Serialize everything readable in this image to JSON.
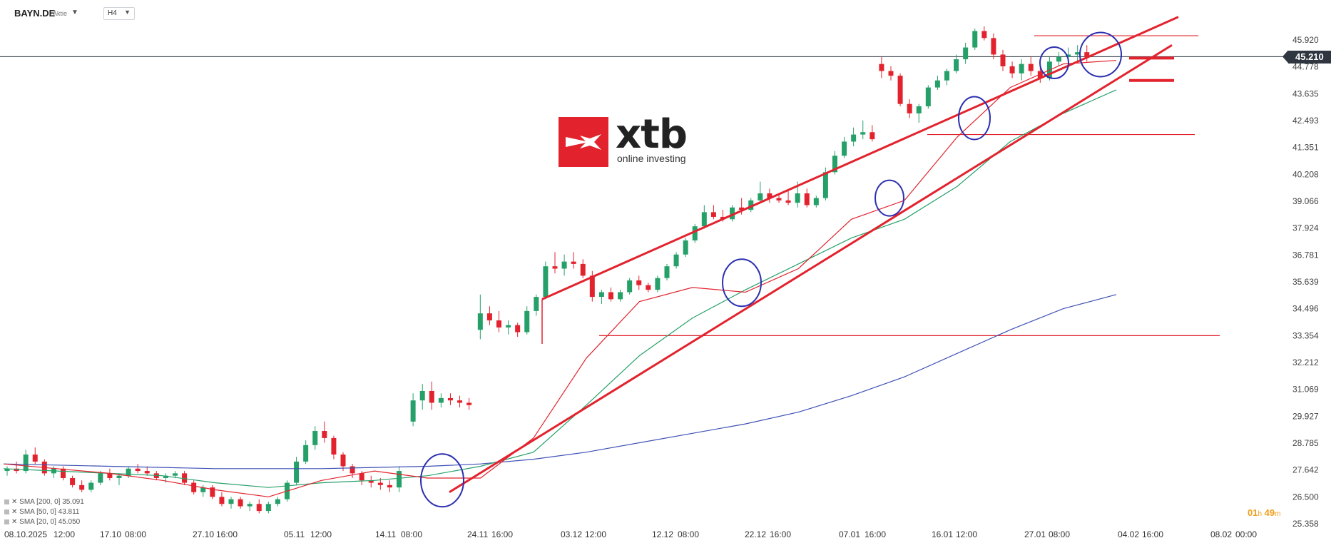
{
  "header": {
    "symbol": "BAYN.DE",
    "symbol_type": "Aktie",
    "timeframe": "H4"
  },
  "logo": {
    "name": "xtb",
    "tagline": "online investing"
  },
  "countdown": {
    "hours": "01",
    "h_unit": "h",
    "minutes": "49",
    "m_unit": "m"
  },
  "current_price": "45.210",
  "legend": [
    {
      "label": "SMA [200, 0] 35.091",
      "color": "#3f51b5"
    },
    {
      "label": "SMA [50, 0] 43.811",
      "color": "#26a069"
    },
    {
      "label": "SMA [20, 0] 45.050",
      "color": "#e2232e"
    }
  ],
  "colors": {
    "up_candle": "#26a069",
    "down_candle": "#e2232e",
    "channel": "#e2232e",
    "circle": "#2b2fb0",
    "price_line": "#2f3640"
  },
  "chart_data": {
    "type": "candlestick",
    "instrument": "BAYN.DE",
    "timeframe": "H4",
    "y_ticks": [
      45.92,
      44.778,
      43.635,
      42.493,
      41.351,
      40.208,
      39.066,
      37.924,
      36.781,
      35.639,
      34.496,
      33.354,
      32.212,
      31.069,
      29.927,
      28.785,
      27.642,
      26.5,
      25.358
    ],
    "y_tick_labels": [
      "45.920",
      "44.778",
      "43.635",
      "42.493",
      "41.351",
      "40.208",
      "39.066",
      "37.924",
      "36.781",
      "35.639",
      "34.496",
      "33.354",
      "32.212",
      "31.069",
      "29.927",
      "28.785",
      "27.642",
      "26.500",
      "25.358"
    ],
    "x_labels": [
      "08.10.2025",
      "12:00",
      "17.10",
      "08:00",
      "27.10",
      "16:00",
      "05.11",
      "12:00",
      "14.11",
      "08:00",
      "24.11",
      "16:00",
      "03.12",
      "12:00",
      "12.12",
      "08:00",
      "22.12",
      "16:00",
      "07.01",
      "16:00",
      "16.01",
      "12:00",
      "27.01",
      "08:00",
      "04.02",
      "16:00",
      "08.02",
      "00:00"
    ],
    "ylim": [
      25.358,
      46.5
    ],
    "current_price": 45.21,
    "grid": false,
    "horizontal_levels": [
      46.1,
      41.9,
      33.354
    ],
    "target_levels": [
      45.15,
      44.2
    ],
    "series_sma": [
      {
        "name": "SMA [200, 0]",
        "last": 35.091,
        "values": [
          27.9,
          27.85,
          27.8,
          27.75,
          27.7,
          27.7,
          27.7,
          27.75,
          27.8,
          27.9,
          28.1,
          28.4,
          28.8,
          29.2,
          29.6,
          30.1,
          30.8,
          31.6,
          32.6,
          33.6,
          34.5,
          35.1
        ]
      },
      {
        "name": "SMA [50, 0]",
        "last": 43.811,
        "values": [
          27.7,
          27.6,
          27.5,
          27.4,
          27.1,
          26.9,
          27.1,
          27.2,
          27.4,
          27.8,
          28.4,
          30.4,
          32.5,
          34.1,
          35.3,
          36.4,
          37.5,
          38.3,
          39.7,
          41.6,
          42.8,
          43.8
        ]
      },
      {
        "name": "SMA [20, 0]",
        "last": 45.05,
        "values": [
          27.9,
          27.7,
          27.5,
          27.2,
          26.8,
          26.5,
          27.2,
          27.6,
          27.3,
          27.3,
          29.0,
          32.4,
          34.8,
          35.4,
          35.2,
          36.2,
          38.3,
          39.1,
          41.8,
          43.9,
          44.9,
          45.05
        ]
      }
    ],
    "candles": [
      [
        27.6,
        27.8,
        27.4,
        27.7
      ],
      [
        27.7,
        28.0,
        27.5,
        27.6
      ],
      [
        27.6,
        28.5,
        27.5,
        28.3
      ],
      [
        28.3,
        28.6,
        27.9,
        28.0
      ],
      [
        28.0,
        28.1,
        27.4,
        27.5
      ],
      [
        27.5,
        27.8,
        27.3,
        27.7
      ],
      [
        27.7,
        27.8,
        27.2,
        27.3
      ],
      [
        27.3,
        27.4,
        26.9,
        27.0
      ],
      [
        27.0,
        27.2,
        26.7,
        26.8
      ],
      [
        26.8,
        27.2,
        26.7,
        27.1
      ],
      [
        27.1,
        27.6,
        27.0,
        27.5
      ],
      [
        27.5,
        27.7,
        27.2,
        27.3
      ],
      [
        27.3,
        27.5,
        27.0,
        27.4
      ],
      [
        27.4,
        27.8,
        27.3,
        27.7
      ],
      [
        27.7,
        27.9,
        27.5,
        27.6
      ],
      [
        27.6,
        27.8,
        27.4,
        27.5
      ],
      [
        27.5,
        27.6,
        27.2,
        27.3
      ],
      [
        27.3,
        27.5,
        27.1,
        27.4
      ],
      [
        27.4,
        27.6,
        27.3,
        27.5
      ],
      [
        27.5,
        27.6,
        27.0,
        27.1
      ],
      [
        27.1,
        27.2,
        26.6,
        26.7
      ],
      [
        26.7,
        27.0,
        26.5,
        26.9
      ],
      [
        26.9,
        27.0,
        26.4,
        26.5
      ],
      [
        26.5,
        26.7,
        26.1,
        26.2
      ],
      [
        26.2,
        26.5,
        26.0,
        26.4
      ],
      [
        26.4,
        26.5,
        26.0,
        26.1
      ],
      [
        26.1,
        26.3,
        25.9,
        26.2
      ],
      [
        26.2,
        26.4,
        25.8,
        25.9
      ],
      [
        25.9,
        26.3,
        25.8,
        26.2
      ],
      [
        26.2,
        26.5,
        26.1,
        26.4
      ],
      [
        26.4,
        27.2,
        26.3,
        27.1
      ],
      [
        27.1,
        28.2,
        27.0,
        28.0
      ],
      [
        28.0,
        28.9,
        27.9,
        28.7
      ],
      [
        28.7,
        29.5,
        28.5,
        29.3
      ],
      [
        29.3,
        29.7,
        28.8,
        29.0
      ],
      [
        29.0,
        29.1,
        28.1,
        28.3
      ],
      [
        28.3,
        28.4,
        27.6,
        27.8
      ],
      [
        27.8,
        27.9,
        27.3,
        27.5
      ],
      [
        27.5,
        27.6,
        27.0,
        27.2
      ],
      [
        27.2,
        27.4,
        26.9,
        27.1
      ],
      [
        27.1,
        27.3,
        26.8,
        27.0
      ],
      [
        27.0,
        27.2,
        26.7,
        26.9
      ],
      [
        26.9,
        27.8,
        26.7,
        27.6
      ],
      [
        29.7,
        30.9,
        29.5,
        30.6
      ],
      [
        30.6,
        31.3,
        30.2,
        31.0
      ],
      [
        31.0,
        31.4,
        30.2,
        30.5
      ],
      [
        30.5,
        30.9,
        30.3,
        30.7
      ],
      [
        30.7,
        30.9,
        30.4,
        30.6
      ],
      [
        30.6,
        30.8,
        30.3,
        30.5
      ],
      [
        30.5,
        30.7,
        30.2,
        30.4
      ],
      [
        33.6,
        35.1,
        33.2,
        34.3
      ],
      [
        34.3,
        34.6,
        33.8,
        34.0
      ],
      [
        34.0,
        34.4,
        33.5,
        33.7
      ],
      [
        33.7,
        34.0,
        33.4,
        33.8
      ],
      [
        33.8,
        33.9,
        33.3,
        33.5
      ],
      [
        33.5,
        34.6,
        33.4,
        34.4
      ],
      [
        34.4,
        35.1,
        34.2,
        35.0
      ],
      [
        35.0,
        36.5,
        34.9,
        36.3
      ],
      [
        36.3,
        36.9,
        36.0,
        36.2
      ],
      [
        36.2,
        36.8,
        35.9,
        36.5
      ],
      [
        36.5,
        36.9,
        36.2,
        36.4
      ],
      [
        36.4,
        36.6,
        35.8,
        35.9
      ],
      [
        35.9,
        36.1,
        34.8,
        35.0
      ],
      [
        35.0,
        35.3,
        34.7,
        35.2
      ],
      [
        35.2,
        35.4,
        34.8,
        34.9
      ],
      [
        34.9,
        35.3,
        34.8,
        35.2
      ],
      [
        35.2,
        35.8,
        35.1,
        35.7
      ],
      [
        35.7,
        35.9,
        35.3,
        35.5
      ],
      [
        35.5,
        35.6,
        35.2,
        35.3
      ],
      [
        35.3,
        35.9,
        35.2,
        35.8
      ],
      [
        35.8,
        36.4,
        35.7,
        36.3
      ],
      [
        36.3,
        36.9,
        36.2,
        36.8
      ],
      [
        36.8,
        37.5,
        36.7,
        37.4
      ],
      [
        37.4,
        38.1,
        37.3,
        38.0
      ],
      [
        38.0,
        38.9,
        37.9,
        38.6
      ],
      [
        38.6,
        38.9,
        38.3,
        38.4
      ],
      [
        38.4,
        38.7,
        38.2,
        38.3
      ],
      [
        38.3,
        38.9,
        38.2,
        38.8
      ],
      [
        38.8,
        39.2,
        38.5,
        38.7
      ],
      [
        38.7,
        39.2,
        38.6,
        39.1
      ],
      [
        39.1,
        39.9,
        39.0,
        39.4
      ],
      [
        39.4,
        39.6,
        39.0,
        39.2
      ],
      [
        39.2,
        39.4,
        39.0,
        39.1
      ],
      [
        39.1,
        39.5,
        38.9,
        39.0
      ],
      [
        39.0,
        39.9,
        38.8,
        39.4
      ],
      [
        39.4,
        39.6,
        38.8,
        38.9
      ],
      [
        38.9,
        39.3,
        38.8,
        39.2
      ],
      [
        39.2,
        40.5,
        39.1,
        40.3
      ],
      [
        40.3,
        41.2,
        40.2,
        41.0
      ],
      [
        41.0,
        41.8,
        40.9,
        41.6
      ],
      [
        41.6,
        42.2,
        41.4,
        41.9
      ],
      [
        41.9,
        42.5,
        41.7,
        42.0
      ],
      [
        42.0,
        42.3,
        41.6,
        41.7
      ],
      [
        44.9,
        45.2,
        44.3,
        44.6
      ],
      [
        44.6,
        44.8,
        44.2,
        44.4
      ],
      [
        44.4,
        44.5,
        43.1,
        43.2
      ],
      [
        43.2,
        43.4,
        42.6,
        42.8
      ],
      [
        42.8,
        43.2,
        42.4,
        43.1
      ],
      [
        43.1,
        44.0,
        43.0,
        43.9
      ],
      [
        43.9,
        44.4,
        43.8,
        44.2
      ]
    ],
    "extra_candles": [
      [
        44.2,
        44.7,
        44.0,
        44.6
      ],
      [
        44.6,
        45.3,
        44.5,
        45.1
      ],
      [
        45.1,
        45.8,
        44.9,
        45.6
      ],
      [
        45.6,
        46.4,
        45.5,
        46.3
      ],
      [
        46.3,
        46.5,
        45.9,
        46.0
      ],
      [
        46.0,
        46.2,
        45.1,
        45.3
      ],
      [
        45.3,
        45.5,
        44.6,
        44.8
      ],
      [
        44.8,
        45.0,
        44.3,
        44.5
      ],
      [
        44.5,
        45.1,
        44.2,
        44.9
      ],
      [
        44.9,
        45.2,
        44.4,
        44.6
      ],
      [
        44.6,
        44.9,
        44.1,
        44.3
      ],
      [
        44.3,
        45.2,
        44.2,
        45.0
      ],
      [
        45.0,
        45.4,
        44.8,
        45.2
      ],
      [
        45.2,
        45.6,
        44.9,
        45.3
      ],
      [
        45.3,
        45.7,
        45.0,
        45.4
      ],
      [
        45.4,
        45.7,
        45.0,
        45.2
      ]
    ]
  }
}
